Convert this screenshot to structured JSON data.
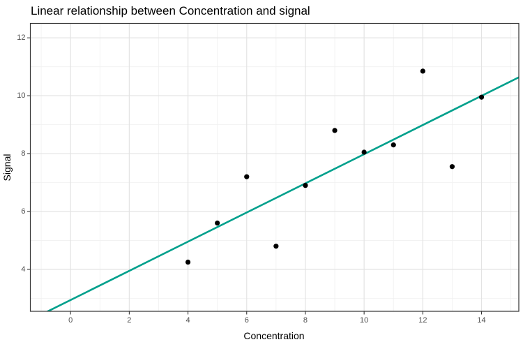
{
  "figure": {
    "background": "#ffffff"
  },
  "chart_data": {
    "type": "scatter",
    "title": "Linear relationship between Concentration and signal",
    "xlabel": "Concentration",
    "ylabel": "Signal",
    "points": {
      "x": [
        4,
        5,
        6,
        7,
        8,
        9,
        10,
        11,
        12,
        13,
        14
      ],
      "y": [
        4.25,
        5.6,
        7.2,
        4.8,
        6.9,
        8.8,
        8.05,
        8.3,
        10.85,
        7.55,
        9.95
      ]
    },
    "fit_line": {
      "type": "linear",
      "intercept": 2.94,
      "slope": 0.504,
      "color": "#00a08c",
      "width": 2.6
    },
    "x_ticks": [
      0,
      2,
      4,
      6,
      8,
      10,
      12,
      14
    ],
    "y_ticks": [
      4,
      6,
      8,
      10,
      12
    ],
    "x_minor_ticks": [
      -1,
      1,
      3,
      5,
      7,
      9,
      11,
      13,
      15
    ],
    "y_minor_ticks": [
      3,
      5,
      7,
      9,
      11
    ],
    "xlim": [
      -1.37,
      15.27
    ],
    "ylim": [
      2.55,
      12.5
    ],
    "grid": true,
    "legend": "none",
    "point_color": "#000000",
    "point_radius": 3.6,
    "style": {
      "panel_background": "#ffffff",
      "panel_border": "#333333",
      "grid_major": "#e3e3e3",
      "grid_minor": "#f0f0f0",
      "tick_color": "#333333",
      "axis_text_color": "#4d4d4d",
      "title_color": "#000000"
    }
  }
}
